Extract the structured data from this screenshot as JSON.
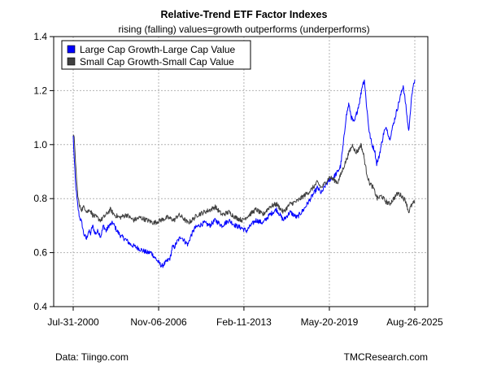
{
  "chart_data": {
    "type": "line",
    "title": "Relative-Trend ETF Factor Indexes",
    "subtitle": "rising (falling) values=growth outperforms (underperforms)",
    "xlabel": "",
    "ylabel": "",
    "ylim": [
      0.4,
      1.4
    ],
    "yticks": [
      "0.4",
      "0.6",
      "0.8",
      "1.0",
      "1.2",
      "1.4"
    ],
    "xticks": [
      {
        "label": "Jul-31-2000",
        "t": 2000.58
      },
      {
        "label": "Nov-06-2006",
        "t": 2006.85
      },
      {
        "label": "Feb-11-2013",
        "t": 2013.11
      },
      {
        "label": "May-20-2019",
        "t": 2019.38
      },
      {
        "label": "Aug-26-2025",
        "t": 2025.65
      }
    ],
    "xrange": [
      2000.58,
      2025.65
    ],
    "grid": true,
    "legend_position": "top-left",
    "series": [
      {
        "name": "Large Cap Growth-Large Cap Value",
        "color": "#0000ff",
        "points": [
          [
            2000.58,
            1.03
          ],
          [
            2000.65,
            0.95
          ],
          [
            2000.75,
            0.86
          ],
          [
            2000.85,
            0.8
          ],
          [
            2000.95,
            0.76
          ],
          [
            2001.05,
            0.73
          ],
          [
            2001.15,
            0.72
          ],
          [
            2001.25,
            0.7
          ],
          [
            2001.35,
            0.67
          ],
          [
            2001.45,
            0.66
          ],
          [
            2001.55,
            0.65
          ],
          [
            2001.7,
            0.68
          ],
          [
            2001.85,
            0.67
          ],
          [
            2002.0,
            0.7
          ],
          [
            2002.2,
            0.67
          ],
          [
            2002.4,
            0.68
          ],
          [
            2002.6,
            0.66
          ],
          [
            2002.8,
            0.7
          ],
          [
            2003.0,
            0.68
          ],
          [
            2003.2,
            0.7
          ],
          [
            2003.5,
            0.71
          ],
          [
            2003.8,
            0.68
          ],
          [
            2004.1,
            0.66
          ],
          [
            2004.4,
            0.65
          ],
          [
            2004.8,
            0.63
          ],
          [
            2005.2,
            0.62
          ],
          [
            2005.6,
            0.61
          ],
          [
            2006.0,
            0.6
          ],
          [
            2006.3,
            0.6
          ],
          [
            2006.6,
            0.58
          ],
          [
            2006.9,
            0.56
          ],
          [
            2007.1,
            0.55
          ],
          [
            2007.3,
            0.56
          ],
          [
            2007.5,
            0.57
          ],
          [
            2007.7,
            0.58
          ],
          [
            2007.85,
            0.62
          ],
          [
            2008.0,
            0.62
          ],
          [
            2008.2,
            0.64
          ],
          [
            2008.5,
            0.66
          ],
          [
            2008.8,
            0.64
          ],
          [
            2009.0,
            0.63
          ],
          [
            2009.2,
            0.66
          ],
          [
            2009.5,
            0.69
          ],
          [
            2009.8,
            0.7
          ],
          [
            2010.2,
            0.71
          ],
          [
            2010.6,
            0.7
          ],
          [
            2011.0,
            0.72
          ],
          [
            2011.5,
            0.7
          ],
          [
            2012.0,
            0.72
          ],
          [
            2012.5,
            0.7
          ],
          [
            2013.0,
            0.69
          ],
          [
            2013.3,
            0.68
          ],
          [
            2013.6,
            0.7
          ],
          [
            2014.0,
            0.72
          ],
          [
            2014.5,
            0.71
          ],
          [
            2015.0,
            0.74
          ],
          [
            2015.5,
            0.76
          ],
          [
            2016.0,
            0.72
          ],
          [
            2016.5,
            0.75
          ],
          [
            2017.0,
            0.73
          ],
          [
            2017.5,
            0.76
          ],
          [
            2018.0,
            0.8
          ],
          [
            2018.5,
            0.84
          ],
          [
            2018.8,
            0.82
          ],
          [
            2019.1,
            0.85
          ],
          [
            2019.4,
            0.87
          ],
          [
            2019.7,
            0.88
          ],
          [
            2020.0,
            0.9
          ],
          [
            2020.2,
            0.92
          ],
          [
            2020.4,
            1.0
          ],
          [
            2020.6,
            1.1
          ],
          [
            2020.8,
            1.15
          ],
          [
            2021.0,
            1.1
          ],
          [
            2021.2,
            1.08
          ],
          [
            2021.4,
            1.12
          ],
          [
            2021.6,
            1.16
          ],
          [
            2021.8,
            1.22
          ],
          [
            2021.95,
            1.24
          ],
          [
            2022.1,
            1.15
          ],
          [
            2022.3,
            1.05
          ],
          [
            2022.5,
            1.0
          ],
          [
            2022.7,
            0.98
          ],
          [
            2022.85,
            0.93
          ],
          [
            2023.0,
            0.95
          ],
          [
            2023.2,
            1.0
          ],
          [
            2023.4,
            1.05
          ],
          [
            2023.6,
            1.06
          ],
          [
            2023.8,
            1.02
          ],
          [
            2024.0,
            1.06
          ],
          [
            2024.2,
            1.1
          ],
          [
            2024.4,
            1.14
          ],
          [
            2024.6,
            1.18
          ],
          [
            2024.8,
            1.22
          ],
          [
            2025.0,
            1.14
          ],
          [
            2025.2,
            1.05
          ],
          [
            2025.3,
            1.1
          ],
          [
            2025.4,
            1.18
          ],
          [
            2025.5,
            1.2
          ],
          [
            2025.6,
            1.23
          ],
          [
            2025.65,
            1.24
          ]
        ]
      },
      {
        "name": "Small Cap Growth-Small Cap Value",
        "color": "#404040",
        "points": [
          [
            2000.58,
            1.04
          ],
          [
            2000.65,
            1.02
          ],
          [
            2000.75,
            0.94
          ],
          [
            2000.85,
            0.85
          ],
          [
            2000.95,
            0.8
          ],
          [
            2001.05,
            0.77
          ],
          [
            2001.2,
            0.76
          ],
          [
            2001.4,
            0.77
          ],
          [
            2001.6,
            0.75
          ],
          [
            2001.8,
            0.76
          ],
          [
            2002.0,
            0.74
          ],
          [
            2002.3,
            0.73
          ],
          [
            2002.6,
            0.72
          ],
          [
            2003.0,
            0.74
          ],
          [
            2003.3,
            0.76
          ],
          [
            2003.6,
            0.74
          ],
          [
            2004.0,
            0.73
          ],
          [
            2004.5,
            0.74
          ],
          [
            2005.0,
            0.72
          ],
          [
            2005.5,
            0.73
          ],
          [
            2006.0,
            0.72
          ],
          [
            2006.5,
            0.71
          ],
          [
            2007.0,
            0.72
          ],
          [
            2007.5,
            0.73
          ],
          [
            2008.0,
            0.72
          ],
          [
            2008.3,
            0.74
          ],
          [
            2008.6,
            0.73
          ],
          [
            2009.0,
            0.71
          ],
          [
            2009.3,
            0.72
          ],
          [
            2009.7,
            0.74
          ],
          [
            2010.2,
            0.75
          ],
          [
            2010.7,
            0.76
          ],
          [
            2011.0,
            0.77
          ],
          [
            2011.5,
            0.74
          ],
          [
            2012.0,
            0.75
          ],
          [
            2012.5,
            0.73
          ],
          [
            2013.0,
            0.72
          ],
          [
            2013.5,
            0.74
          ],
          [
            2014.0,
            0.76
          ],
          [
            2014.5,
            0.74
          ],
          [
            2015.0,
            0.77
          ],
          [
            2015.5,
            0.78
          ],
          [
            2016.0,
            0.75
          ],
          [
            2016.5,
            0.78
          ],
          [
            2017.0,
            0.79
          ],
          [
            2017.5,
            0.81
          ],
          [
            2018.0,
            0.83
          ],
          [
            2018.5,
            0.86
          ],
          [
            2018.8,
            0.84
          ],
          [
            2019.1,
            0.86
          ],
          [
            2019.4,
            0.88
          ],
          [
            2019.7,
            0.87
          ],
          [
            2020.0,
            0.86
          ],
          [
            2020.3,
            0.9
          ],
          [
            2020.6,
            0.94
          ],
          [
            2020.9,
            0.98
          ],
          [
            2021.1,
            1.0
          ],
          [
            2021.3,
            0.97
          ],
          [
            2021.5,
            0.98
          ],
          [
            2021.7,
            1.0
          ],
          [
            2021.9,
            0.96
          ],
          [
            2022.1,
            0.9
          ],
          [
            2022.3,
            0.86
          ],
          [
            2022.6,
            0.84
          ],
          [
            2022.9,
            0.8
          ],
          [
            2023.2,
            0.81
          ],
          [
            2023.5,
            0.79
          ],
          [
            2023.8,
            0.78
          ],
          [
            2024.1,
            0.8
          ],
          [
            2024.4,
            0.82
          ],
          [
            2024.7,
            0.81
          ],
          [
            2025.0,
            0.79
          ],
          [
            2025.2,
            0.75
          ],
          [
            2025.35,
            0.77
          ],
          [
            2025.5,
            0.78
          ],
          [
            2025.65,
            0.79
          ]
        ]
      }
    ]
  },
  "footer": {
    "source": "Data: Tiingo.com",
    "credit": "TMCResearch.com"
  }
}
